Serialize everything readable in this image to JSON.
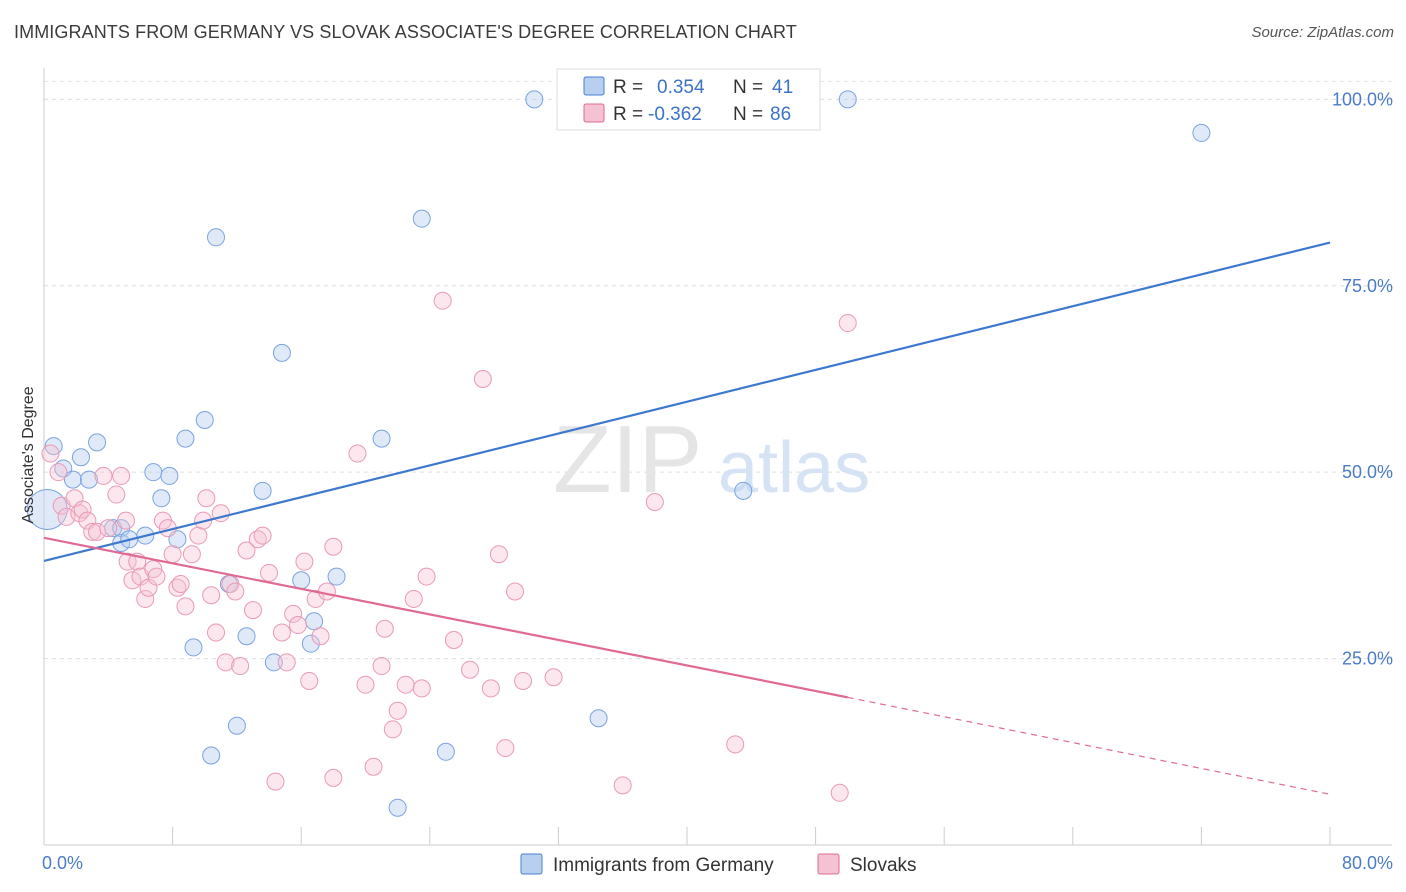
{
  "header": {
    "title": "IMMIGRANTS FROM GERMANY VS SLOVAK ASSOCIATE'S DEGREE CORRELATION CHART",
    "source": "Source: ZipAtlas.com"
  },
  "watermark": {
    "zip": "ZIP",
    "atlas": "atlas"
  },
  "colors": {
    "blue": "#4a7fd4",
    "blue_fill": "#b8cff0",
    "pink": "#e06a93",
    "pink_fill": "#f5c2d3",
    "tick": "#4a7cc7"
  },
  "legend_box": {
    "rows": [
      {
        "r_label": "R =",
        "r_value": "0.354",
        "n_label": "N =",
        "n_value": "41"
      },
      {
        "r_label": "R =",
        "r_value": "-0.362",
        "n_label": "N =",
        "n_value": "86"
      }
    ]
  },
  "bottom_legend": [
    "Immigrants from Germany",
    "Slovaks"
  ],
  "chart_data": {
    "type": "scatter",
    "title": "IMMIGRANTS FROM GERMANY VS SLOVAK ASSOCIATE'S DEGREE CORRELATION CHART",
    "xlabel": "",
    "ylabel": "Associate's Degree",
    "xlim": [
      0,
      80
    ],
    "ylim": [
      0,
      103
    ],
    "x_tick_labels": {
      "left": "0.0%",
      "right": "80.0%"
    },
    "y_ticks": [
      {
        "value": 25,
        "label": "25.0%"
      },
      {
        "value": 50,
        "label": "50.0%"
      },
      {
        "value": 75,
        "label": "75.0%"
      },
      {
        "value": 100,
        "label": "100.0%"
      }
    ],
    "series": [
      {
        "name": "Immigrants from Germany",
        "r": 0.354,
        "n": 41,
        "trend": {
          "x0": 0,
          "y0": 38.1,
          "x1": 80,
          "y1": 80.8
        },
        "points": [
          [
            0.2,
            45.0
          ],
          [
            0.6,
            53.5
          ],
          [
            1.2,
            50.5
          ],
          [
            1.8,
            49.0
          ],
          [
            2.3,
            52.0
          ],
          [
            2.8,
            49.0
          ],
          [
            3.3,
            54.0
          ],
          [
            4.3,
            42.5
          ],
          [
            4.8,
            42.5
          ],
          [
            4.8,
            40.5
          ],
          [
            5.3,
            41.0
          ],
          [
            6.3,
            41.5
          ],
          [
            6.8,
            50.0
          ],
          [
            7.3,
            46.5
          ],
          [
            7.8,
            49.5
          ],
          [
            8.3,
            41.0
          ],
          [
            8.8,
            54.5
          ],
          [
            9.3,
            26.5
          ],
          [
            10.0,
            57.0
          ],
          [
            10.4,
            12.0
          ],
          [
            10.7,
            81.5
          ],
          [
            11.5,
            35.0
          ],
          [
            12.0,
            16.0
          ],
          [
            12.6,
            28.0
          ],
          [
            13.6,
            47.5
          ],
          [
            14.3,
            24.5
          ],
          [
            14.8,
            66.0
          ],
          [
            16.6,
            27.0
          ],
          [
            16.0,
            35.5
          ],
          [
            16.8,
            30.0
          ],
          [
            18.2,
            36.0
          ],
          [
            21.0,
            54.5
          ],
          [
            22.0,
            5.0
          ],
          [
            23.5,
            84.0
          ],
          [
            25.0,
            12.5
          ],
          [
            30.5,
            100.0
          ],
          [
            34.5,
            17.0
          ],
          [
            43.5,
            47.5
          ],
          [
            50.0,
            100.0
          ],
          [
            72.0,
            95.5
          ]
        ]
      },
      {
        "name": "Slovaks",
        "r": -0.362,
        "n": 86,
        "trend": {
          "x0": 0,
          "y0": 41.2,
          "x1": 50,
          "y1": 19.8,
          "dash_x1": 80,
          "dash_y1": 6.8
        },
        "points": [
          [
            0.4,
            52.5
          ],
          [
            0.9,
            50.0
          ],
          [
            1.1,
            45.5
          ],
          [
            1.4,
            44.0
          ],
          [
            1.9,
            46.5
          ],
          [
            2.2,
            44.5
          ],
          [
            2.4,
            45.0
          ],
          [
            2.7,
            43.5
          ],
          [
            3.0,
            42.0
          ],
          [
            3.3,
            42.0
          ],
          [
            3.7,
            49.5
          ],
          [
            4.0,
            42.5
          ],
          [
            4.5,
            47.0
          ],
          [
            4.8,
            49.5
          ],
          [
            5.1,
            43.5
          ],
          [
            5.2,
            38.0
          ],
          [
            5.5,
            35.5
          ],
          [
            5.8,
            38.0
          ],
          [
            6.0,
            36.0
          ],
          [
            6.3,
            33.0
          ],
          [
            6.5,
            34.5
          ],
          [
            6.8,
            37.0
          ],
          [
            7.0,
            36.0
          ],
          [
            7.4,
            43.5
          ],
          [
            7.7,
            42.5
          ],
          [
            8.0,
            39.0
          ],
          [
            8.3,
            34.5
          ],
          [
            8.5,
            35.0
          ],
          [
            8.8,
            32.0
          ],
          [
            9.2,
            39.0
          ],
          [
            9.6,
            41.5
          ],
          [
            9.9,
            43.5
          ],
          [
            10.1,
            46.5
          ],
          [
            10.4,
            33.5
          ],
          [
            10.7,
            28.5
          ],
          [
            11.0,
            44.5
          ],
          [
            11.3,
            24.5
          ],
          [
            11.6,
            35.0
          ],
          [
            11.9,
            34.0
          ],
          [
            12.2,
            24.0
          ],
          [
            12.6,
            39.5
          ],
          [
            13.0,
            31.5
          ],
          [
            13.3,
            41.0
          ],
          [
            13.6,
            41.5
          ],
          [
            14.0,
            36.5
          ],
          [
            14.4,
            8.5
          ],
          [
            14.8,
            28.5
          ],
          [
            15.1,
            24.5
          ],
          [
            15.5,
            31.0
          ],
          [
            15.8,
            29.5
          ],
          [
            16.2,
            38.0
          ],
          [
            16.5,
            22.0
          ],
          [
            16.9,
            33.0
          ],
          [
            17.2,
            28.0
          ],
          [
            17.6,
            34.0
          ],
          [
            18.0,
            40.0
          ],
          [
            18.0,
            9.0
          ],
          [
            19.5,
            52.5
          ],
          [
            20.0,
            21.5
          ],
          [
            20.5,
            10.5
          ],
          [
            21.0,
            24.0
          ],
          [
            21.2,
            29.0
          ],
          [
            21.7,
            15.5
          ],
          [
            22.0,
            18.0
          ],
          [
            22.5,
            21.5
          ],
          [
            23.0,
            33.0
          ],
          [
            23.5,
            21.0
          ],
          [
            23.8,
            36.0
          ],
          [
            24.8,
            73.0
          ],
          [
            25.5,
            27.5
          ],
          [
            26.5,
            23.5
          ],
          [
            27.3,
            62.5
          ],
          [
            27.8,
            21.0
          ],
          [
            28.3,
            39.0
          ],
          [
            28.7,
            13.0
          ],
          [
            29.3,
            34.0
          ],
          [
            29.8,
            22.0
          ],
          [
            31.7,
            22.5
          ],
          [
            36.0,
            8.0
          ],
          [
            38.0,
            46.0
          ],
          [
            43.0,
            13.5
          ],
          [
            49.5,
            7.0
          ],
          [
            50.0,
            70.0
          ]
        ]
      }
    ]
  }
}
